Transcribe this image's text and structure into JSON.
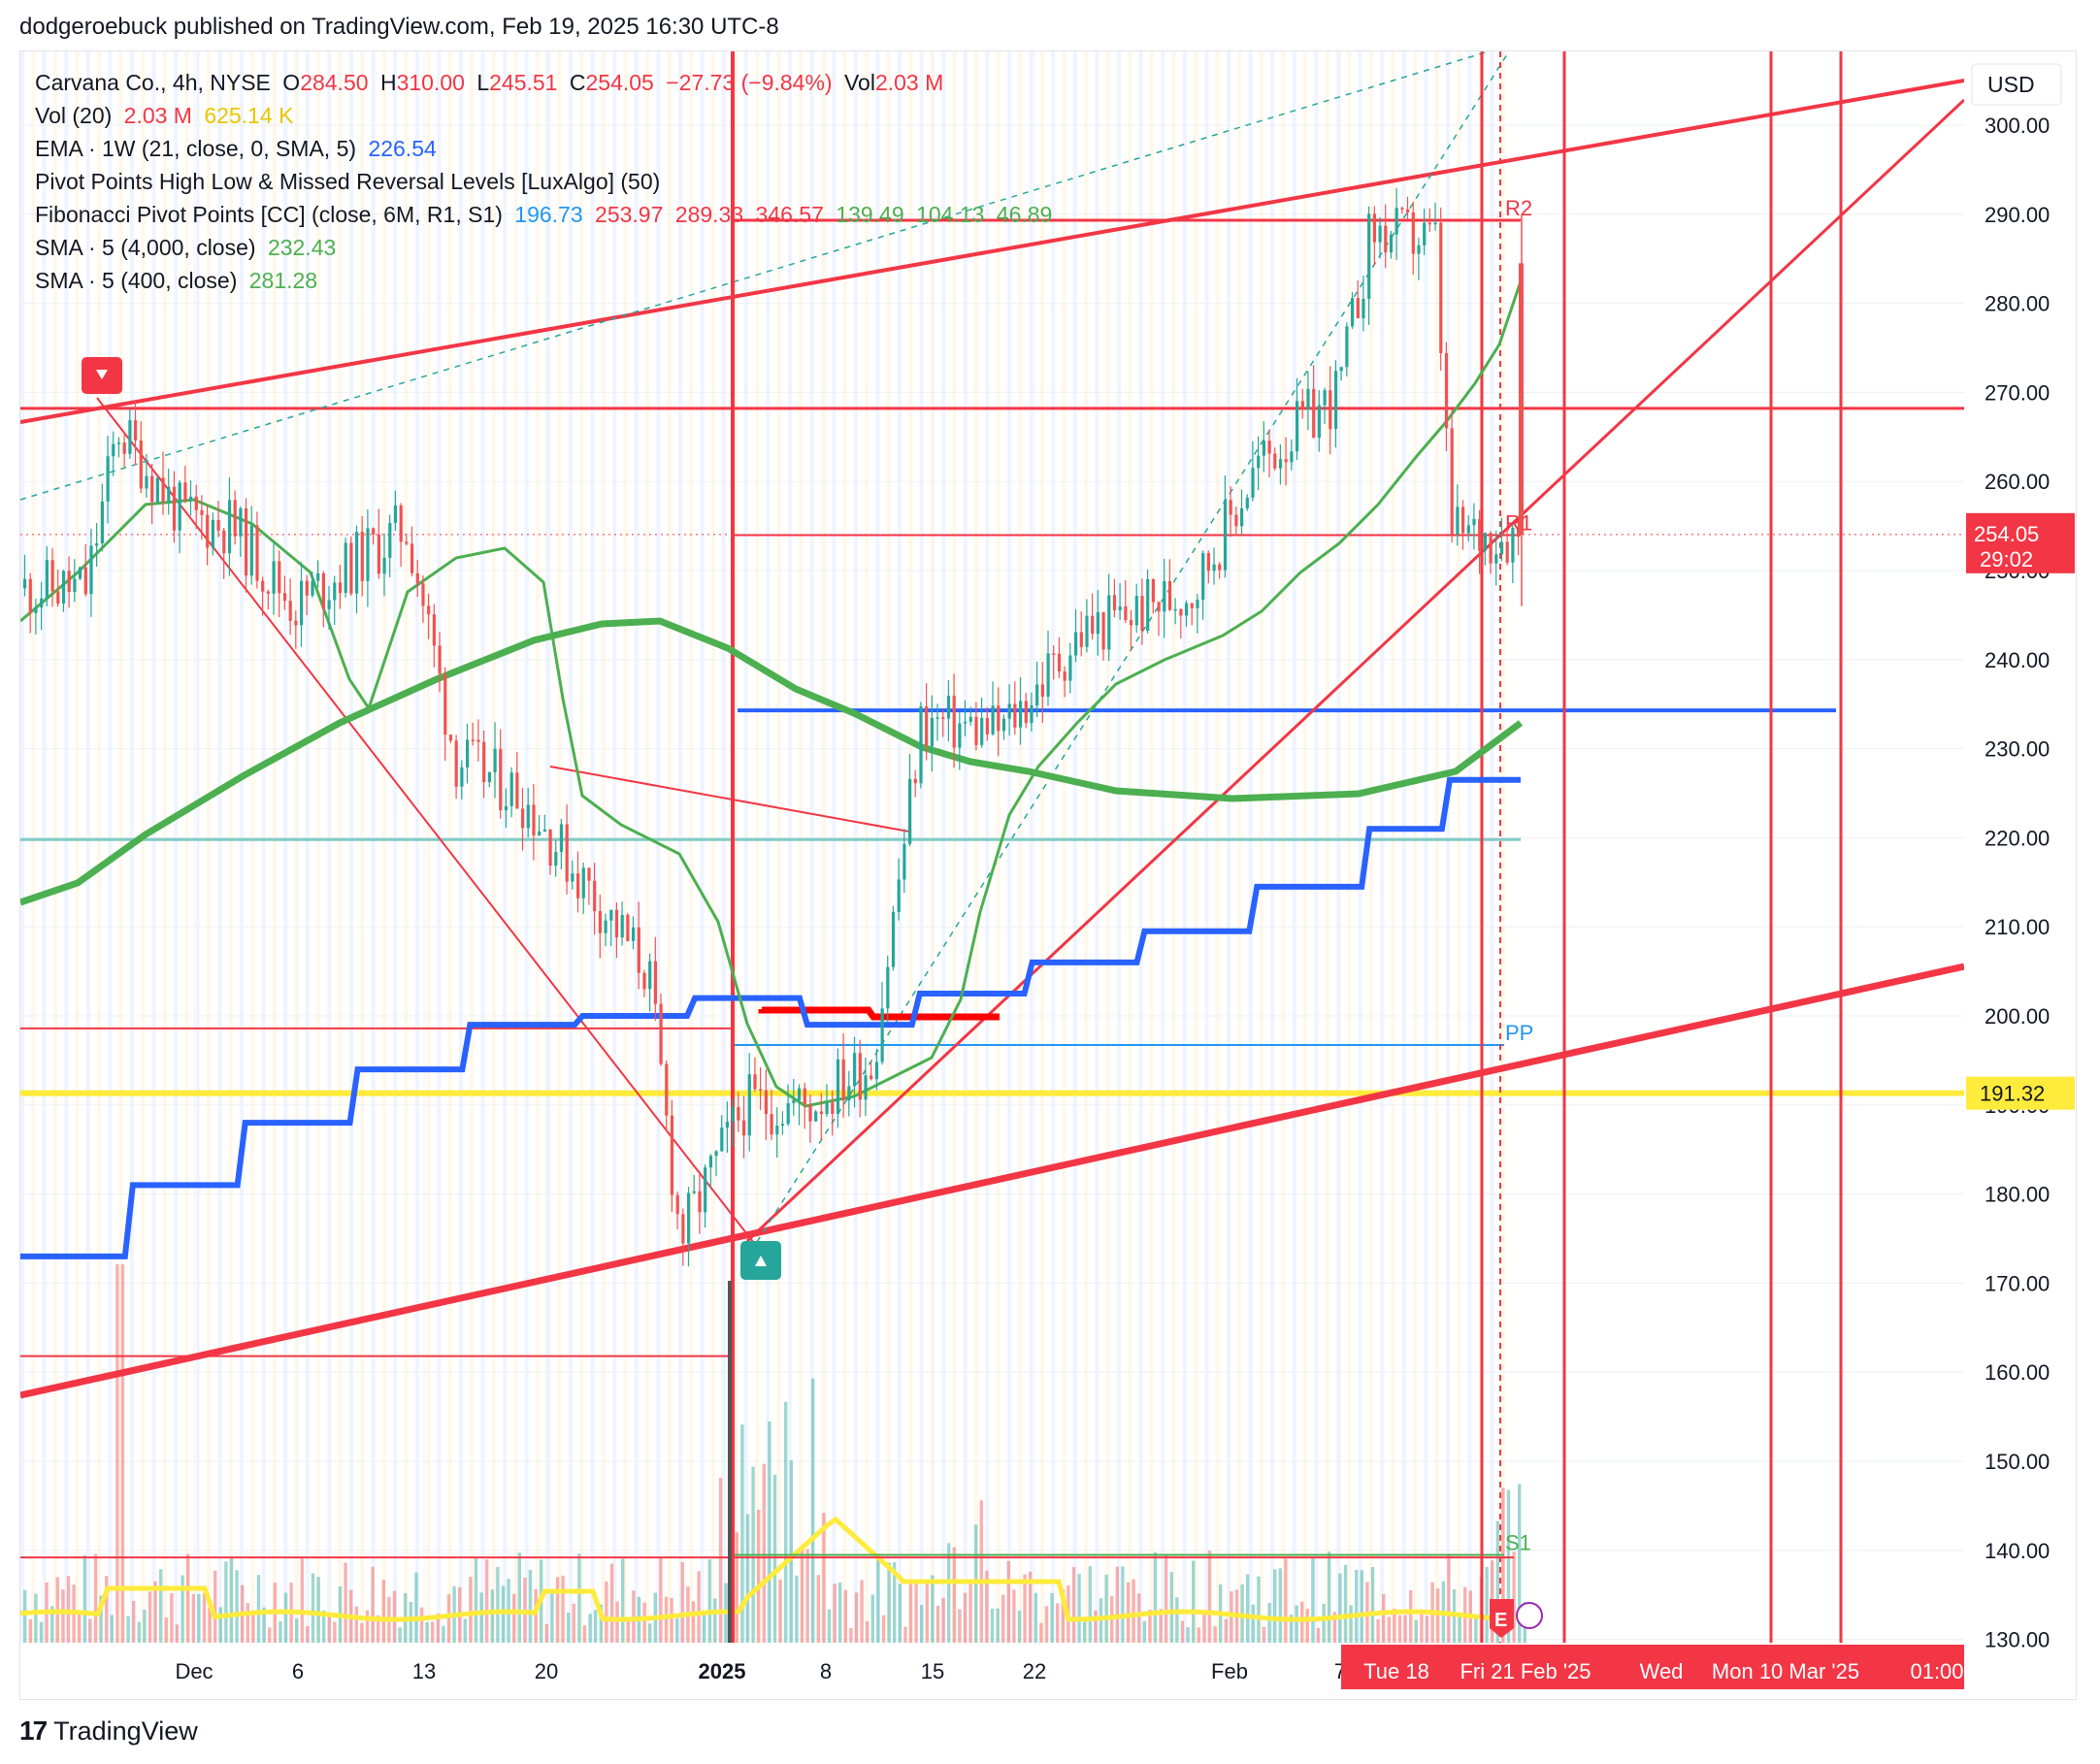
{
  "publisher_line": "dodgeroebuck published on TradingView.com, Feb 19, 2025 16:30 UTC-8",
  "footer": {
    "brand": "TradingView",
    "logo_icon": "tradingview-logo-icon"
  },
  "legend": {
    "symbol_line": {
      "name": "Carvana Co., 4h, NYSE",
      "o_label": "O",
      "o": "284.50",
      "h_label": "H",
      "h": "310.00",
      "l_label": "L",
      "l": "245.51",
      "c_label": "C",
      "c": "254.05",
      "change": "−27.73 (−9.84%)",
      "vol_label": "Vol",
      "vol": "2.03 M"
    },
    "vol20": {
      "label": "Vol (20)",
      "v1": "2.03 M",
      "v2": "625.14 K"
    },
    "ema": {
      "label": "EMA · 1W (21, close, 0, SMA, 5)",
      "v": "226.54"
    },
    "pivots": {
      "label": "Pivot Points High Low & Missed Reversal Levels [LuxAlgo] (50)"
    },
    "fib": {
      "label": "Fibonacci Pivot Points [CC] (close, 6M, R1, S1)",
      "v": [
        "196.73",
        "253.97",
        "289.33",
        "346.57",
        "139.49",
        "104.13",
        "46.89"
      ]
    },
    "sma4000": {
      "label": "SMA · 5 (4,000, close)",
      "v": "232.43"
    },
    "sma400": {
      "label": "SMA · 5 (400, close)",
      "v": "281.28"
    }
  },
  "colors": {
    "up": "#26a69a",
    "down": "#ef5350",
    "red_line": "#f23645",
    "blue_step": "#2962ff",
    "green_sma": "#4caf50",
    "yellow": "#ffeb3b",
    "fib_blue": "#2196f3"
  },
  "chart_data": {
    "type": "candlestick",
    "title": "Carvana Co., 4h, NYSE",
    "currency": "USD",
    "y_range": [
      130,
      305
    ],
    "y_ticks": [
      "300.00",
      "290.00",
      "280.00",
      "270.00",
      "260.00",
      "250.00",
      "240.00",
      "230.00",
      "220.00",
      "210.00",
      "200.00",
      "190.00",
      "180.00",
      "170.00",
      "160.00",
      "150.00",
      "140.00",
      "130.00"
    ],
    "x_ticks": [
      "Dec",
      "6",
      "13",
      "20",
      "2025",
      "8",
      "15",
      "22",
      "Feb",
      "7"
    ],
    "x_range_labels": [
      "Tue 18",
      "Fri 21 Feb '25",
      "Wed",
      "Mon 10 Mar '25",
      "01:00"
    ],
    "price_label": {
      "value": "254.05",
      "countdown": "29:02"
    },
    "yellow_level": {
      "value": 191.32,
      "label": "191.32"
    },
    "fib_levels": [
      {
        "name": "R2",
        "value": 289.33
      },
      {
        "name": "R1",
        "value": 253.97
      },
      {
        "name": "PP",
        "value": 196.73
      },
      {
        "name": "S1",
        "value": 139.49
      }
    ],
    "close_path": [
      {
        "date": "2024-11-26",
        "close": 248
      },
      {
        "date": "2024-11-28",
        "close": 266
      },
      {
        "date": "2024-12-02",
        "close": 256
      },
      {
        "date": "2024-12-05",
        "close": 255
      },
      {
        "date": "2024-12-09",
        "close": 246
      },
      {
        "date": "2024-12-12",
        "close": 250
      },
      {
        "date": "2024-12-16",
        "close": 255
      },
      {
        "date": "2024-12-19",
        "close": 229
      },
      {
        "date": "2024-12-23",
        "close": 225
      },
      {
        "date": "2024-12-27",
        "close": 215
      },
      {
        "date": "2024-12-31",
        "close": 205
      },
      {
        "date": "2025-01-02",
        "close": 175
      },
      {
        "date": "2025-01-06",
        "close": 190
      },
      {
        "date": "2025-01-10",
        "close": 190
      },
      {
        "date": "2025-01-14",
        "close": 195
      },
      {
        "date": "2025-01-17",
        "close": 233
      },
      {
        "date": "2025-01-22",
        "close": 232
      },
      {
        "date": "2025-01-27",
        "close": 243
      },
      {
        "date": "2025-02-03",
        "close": 248
      },
      {
        "date": "2025-02-07",
        "close": 262
      },
      {
        "date": "2025-02-12",
        "close": 270
      },
      {
        "date": "2025-02-14",
        "close": 288
      },
      {
        "date": "2025-02-18",
        "close": 287
      },
      {
        "date": "2025-02-19",
        "close": 254.05
      }
    ],
    "blue_step_ema": [
      {
        "from": "2024-11-22",
        "value": 173
      },
      {
        "from": "2024-11-29",
        "value": 181
      },
      {
        "from": "2024-12-06",
        "value": 188
      },
      {
        "from": "2024-12-13",
        "value": 194
      },
      {
        "from": "2024-12-20",
        "value": 199
      },
      {
        "from": "2024-12-27",
        "value": 200
      },
      {
        "from": "2025-01-03",
        "value": 202
      },
      {
        "from": "2025-01-10",
        "value": 199
      },
      {
        "from": "2025-01-17",
        "value": 202.5
      },
      {
        "from": "2025-01-24",
        "value": 206
      },
      {
        "from": "2025-01-31",
        "value": 209.5
      },
      {
        "from": "2025-02-07",
        "value": 214.5
      },
      {
        "from": "2025-02-14",
        "value": 221
      },
      {
        "from": "2025-02-19",
        "value": 226.5
      }
    ]
  }
}
